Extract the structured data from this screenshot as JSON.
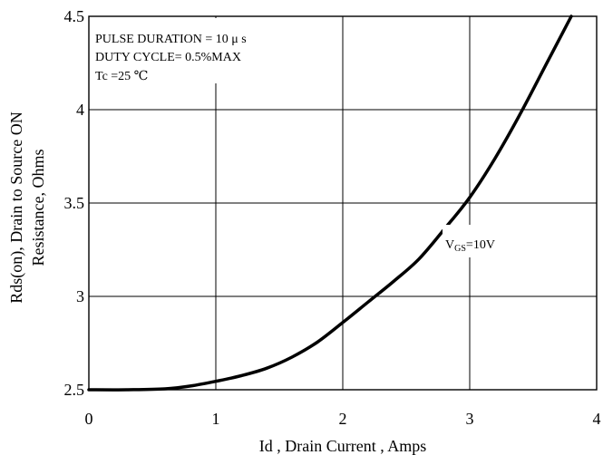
{
  "chart_data": {
    "type": "line",
    "xlabel": "Id , Drain Current , Amps",
    "ylabel_line1": "Rds(on), Drain to Source ON",
    "ylabel_line2": "Resistance, Ohms",
    "xlim": [
      0,
      4
    ],
    "ylim": [
      2.5,
      4.5
    ],
    "x_ticks": [
      "0",
      "1",
      "2",
      "3",
      "4"
    ],
    "y_ticks": [
      "2.5",
      "3",
      "3.5",
      "4",
      "4.5"
    ],
    "grid": true,
    "annotations": {
      "line1": "PULSE   DURATION = 10 μ s",
      "line2": "DUTY   CYCLE= 0.5%MAX",
      "line3": "Tc =25  ℃"
    },
    "series": [
      {
        "label_main": "V",
        "label_sub": "GS",
        "label_rest": "=10V",
        "x": [
          0,
          0.3,
          0.6,
          0.8,
          1.0,
          1.2,
          1.4,
          1.6,
          1.8,
          2.0,
          2.2,
          2.4,
          2.6,
          2.8,
          3.0,
          3.2,
          3.4,
          3.6,
          3.8
        ],
        "y": [
          2.5,
          2.5,
          2.505,
          2.52,
          2.545,
          2.575,
          2.615,
          2.675,
          2.755,
          2.86,
          2.97,
          3.08,
          3.2,
          3.36,
          3.53,
          3.74,
          3.98,
          4.24,
          4.5
        ]
      }
    ],
    "colors": {
      "line": "#000000",
      "grid": "#000000",
      "background": "#ffffff"
    }
  }
}
